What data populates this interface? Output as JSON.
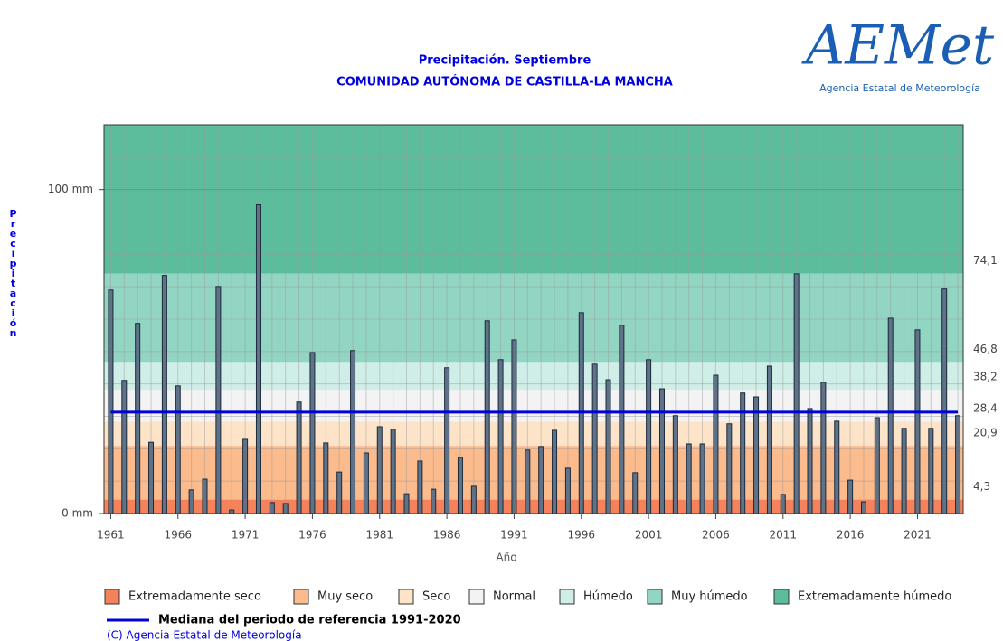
{
  "chart_data": {
    "type": "bar",
    "title": "Precipitación. Septiembre",
    "subtitle": "COMUNIDAD AUTÓNOMA DE CASTILLA-LA MANCHA",
    "logo": {
      "name": "AEMet",
      "tagline": "Agencia Estatal de Meteorología"
    },
    "x_label": "Año",
    "y_label": "Precipitación",
    "x": [
      1961,
      1962,
      1963,
      1964,
      1965,
      1966,
      1967,
      1968,
      1969,
      1970,
      1971,
      1972,
      1973,
      1974,
      1975,
      1976,
      1977,
      1978,
      1979,
      1980,
      1981,
      1982,
      1983,
      1984,
      1985,
      1986,
      1987,
      1988,
      1989,
      1990,
      1991,
      1992,
      1993,
      1994,
      1995,
      1996,
      1997,
      1998,
      1999,
      2000,
      2001,
      2002,
      2003,
      2004,
      2005,
      2006,
      2007,
      2008,
      2009,
      2010,
      2011,
      2012,
      2013,
      2014,
      2015,
      2016,
      2017,
      2018,
      2019,
      2020,
      2021,
      2022,
      2023,
      2024
    ],
    "values": [
      69.0,
      41.1,
      58.7,
      22.0,
      73.5,
      39.4,
      7.3,
      10.6,
      70.1,
      1.1,
      22.9,
      95.3,
      3.4,
      3.1,
      34.4,
      49.7,
      21.8,
      12.8,
      50.3,
      18.7,
      26.8,
      26.0,
      6.1,
      16.2,
      7.5,
      45.0,
      17.3,
      8.4,
      59.5,
      47.5,
      53.6,
      19.6,
      20.7,
      25.7,
      14.0,
      62.0,
      46.1,
      41.3,
      58.1,
      12.6,
      47.5,
      38.5,
      30.2,
      21.5,
      21.5,
      42.7,
      27.7,
      37.2,
      36.0,
      45.5,
      5.9,
      74.0,
      32.4,
      40.5,
      28.5,
      10.3,
      3.6,
      29.6,
      60.3,
      26.3,
      56.7,
      26.3,
      69.3,
      30.2
    ],
    "color": "#5f7287",
    "xlim": [
      1960.5,
      2024.4
    ],
    "xticks": [
      1961,
      1966,
      1971,
      1976,
      1981,
      1986,
      1991,
      1996,
      2001,
      2006,
      2011,
      2016,
      2021
    ],
    "ylim": [
      0,
      120
    ],
    "yticks": [
      {
        "value": 0,
        "label": "0 mm"
      },
      {
        "value": 100,
        "label": "100 mm"
      }
    ],
    "thresholds": [
      {
        "value": 4.3,
        "label": "4,3"
      },
      {
        "value": 20.9,
        "label": "20,9"
      },
      {
        "value": 28.4,
        "label": "28,4"
      },
      {
        "value": 38.2,
        "label": "38,2"
      },
      {
        "value": 46.8,
        "label": "46,8"
      },
      {
        "value": 74.1,
        "label": "74,1"
      }
    ],
    "bands": [
      {
        "name": "Extremadamente seco",
        "color": "#f4825a"
      },
      {
        "name": "Muy seco",
        "color": "#fbbb8d"
      },
      {
        "name": "Seco",
        "color": "#fde4c8"
      },
      {
        "name": "Normal",
        "color": "#f3f3f3"
      },
      {
        "name": "Húmedo",
        "color": "#cfeee7"
      },
      {
        "name": "Muy húmedo",
        "color": "#93d5c3"
      },
      {
        "name": "Extremadamente húmedo",
        "color": "#5cbd9d"
      }
    ],
    "median": {
      "name": "Mediana del periodo de referencia 1991-2020",
      "value": 31.3,
      "color": "#0000dd"
    },
    "grid": true,
    "footer": "(C) Agencia Estatal de Meteorología"
  }
}
